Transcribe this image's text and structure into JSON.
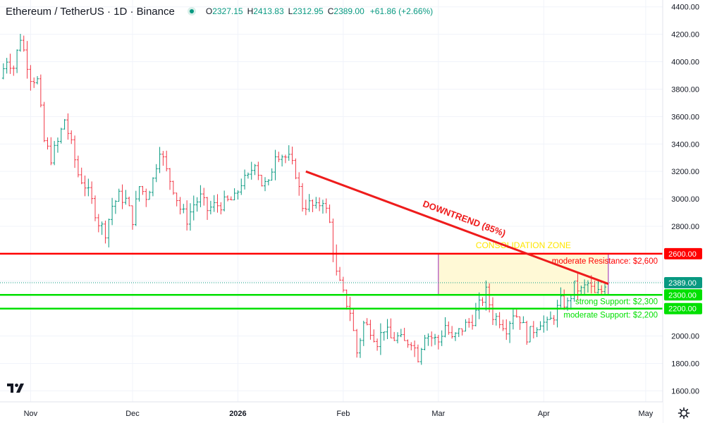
{
  "header": {
    "title": "Ethereum / TetherUS · 1D · Binance",
    "o_label": "O",
    "o_value": "2327.15",
    "h_label": "H",
    "h_value": "2413.83",
    "l_label": "L",
    "l_value": "2312.95",
    "c_label": "C",
    "c_value": "2389.00",
    "change": "+61.86 (+2.66%)"
  },
  "colors": {
    "up": "#089981",
    "down": "#f23645",
    "resistance": "#ff0000",
    "support": "#00e000",
    "trend": "#ee1c1c",
    "zone_fill": "#fff9d6",
    "zone_border": "#9c27b0",
    "zone_label": "#ffe600"
  },
  "chart_data": {
    "type": "candlestick",
    "x_ticks": [
      {
        "date": "2025-11-01",
        "label": "Nov"
      },
      {
        "date": "2025-12-01",
        "label": "Dec"
      },
      {
        "date": "2026-01-01",
        "label": "2026"
      },
      {
        "date": "2026-02-01",
        "label": "Feb"
      },
      {
        "date": "2026-03-01",
        "label": "Mar"
      },
      {
        "date": "2026-04-01",
        "label": "Apr"
      },
      {
        "date": "2026-05-01",
        "label": "May"
      }
    ],
    "y_ticks": [
      1600,
      1800,
      2000,
      2200,
      2400,
      2600,
      2800,
      3000,
      3200,
      3400,
      3600,
      3800,
      4000,
      4200,
      4400
    ],
    "y_range": [
      1520,
      4450
    ],
    "x_range": [
      "2025-10-23",
      "2026-05-06"
    ],
    "closes": [
      {
        "date": "2025-10-24",
        "close": 3880
      },
      {
        "date": "2025-10-26",
        "close": 4020
      },
      {
        "date": "2025-10-28",
        "close": 3960
      },
      {
        "date": "2025-10-30",
        "close": 4180
      },
      {
        "date": "2025-10-31",
        "close": 4080
      },
      {
        "date": "2025-11-02",
        "close": 3890
      },
      {
        "date": "2025-11-04",
        "close": 3860
      },
      {
        "date": "2025-11-06",
        "close": 3420
      },
      {
        "date": "2025-11-08",
        "close": 3300
      },
      {
        "date": "2025-11-10",
        "close": 3410
      },
      {
        "date": "2025-11-12",
        "close": 3580
      },
      {
        "date": "2025-11-14",
        "close": 3390
      },
      {
        "date": "2025-11-16",
        "close": 3180
      },
      {
        "date": "2025-11-18",
        "close": 3100
      },
      {
        "date": "2025-11-20",
        "close": 2980
      },
      {
        "date": "2025-11-22",
        "close": 2830
      },
      {
        "date": "2025-11-24",
        "close": 2760
      },
      {
        "date": "2025-11-26",
        "close": 2950
      },
      {
        "date": "2025-11-28",
        "close": 3020
      },
      {
        "date": "2025-11-30",
        "close": 2990
      },
      {
        "date": "2025-12-02",
        "close": 2850
      },
      {
        "date": "2025-12-04",
        "close": 3090
      },
      {
        "date": "2025-12-06",
        "close": 3020
      },
      {
        "date": "2025-12-08",
        "close": 3140
      },
      {
        "date": "2025-12-10",
        "close": 3370
      },
      {
        "date": "2025-12-12",
        "close": 3200
      },
      {
        "date": "2025-12-14",
        "close": 3080
      },
      {
        "date": "2025-12-16",
        "close": 2930
      },
      {
        "date": "2025-12-18",
        "close": 2850
      },
      {
        "date": "2025-12-20",
        "close": 2960
      },
      {
        "date": "2025-12-22",
        "close": 3010
      },
      {
        "date": "2025-12-24",
        "close": 2920
      },
      {
        "date": "2025-12-26",
        "close": 2950
      },
      {
        "date": "2025-12-28",
        "close": 2960
      },
      {
        "date": "2025-12-30",
        "close": 2980
      },
      {
        "date": "2026-01-01",
        "close": 3000
      },
      {
        "date": "2026-01-03",
        "close": 3120
      },
      {
        "date": "2026-01-05",
        "close": 3150
      },
      {
        "date": "2026-01-07",
        "close": 3280
      },
      {
        "date": "2026-01-09",
        "close": 3110
      },
      {
        "date": "2026-01-11",
        "close": 3100
      },
      {
        "date": "2026-01-13",
        "close": 3340
      },
      {
        "date": "2026-01-15",
        "close": 3320
      },
      {
        "date": "2026-01-17",
        "close": 3290
      },
      {
        "date": "2026-01-19",
        "close": 3190
      },
      {
        "date": "2026-01-21",
        "close": 2950
      },
      {
        "date": "2026-01-23",
        "close": 2960
      },
      {
        "date": "2026-01-25",
        "close": 2930
      },
      {
        "date": "2026-01-27",
        "close": 3000
      },
      {
        "date": "2026-01-29",
        "close": 2820
      },
      {
        "date": "2026-01-31",
        "close": 2450
      },
      {
        "date": "2026-02-02",
        "close": 2300
      },
      {
        "date": "2026-02-04",
        "close": 2180
      },
      {
        "date": "2026-02-06",
        "close": 1880
      },
      {
        "date": "2026-02-08",
        "close": 2090
      },
      {
        "date": "2026-02-10",
        "close": 2050
      },
      {
        "date": "2026-02-12",
        "close": 1960
      },
      {
        "date": "2026-02-14",
        "close": 2060
      },
      {
        "date": "2026-02-16",
        "close": 1980
      },
      {
        "date": "2026-02-18",
        "close": 1990
      },
      {
        "date": "2026-02-20",
        "close": 1950
      },
      {
        "date": "2026-02-22",
        "close": 1970
      },
      {
        "date": "2026-02-24",
        "close": 1850
      },
      {
        "date": "2026-02-26",
        "close": 2020
      },
      {
        "date": "2026-02-28",
        "close": 1990
      },
      {
        "date": "2026-03-02",
        "close": 1960
      },
      {
        "date": "2026-03-04",
        "close": 2080
      },
      {
        "date": "2026-03-06",
        "close": 1970
      },
      {
        "date": "2026-03-08",
        "close": 2030
      },
      {
        "date": "2026-03-10",
        "close": 2080
      },
      {
        "date": "2026-03-12",
        "close": 2120
      },
      {
        "date": "2026-03-14",
        "close": 2220
      },
      {
        "date": "2026-03-16",
        "close": 2320
      },
      {
        "date": "2026-03-18",
        "close": 2150
      },
      {
        "date": "2026-03-20",
        "close": 2120
      },
      {
        "date": "2026-03-22",
        "close": 2060
      },
      {
        "date": "2026-03-24",
        "close": 2170
      },
      {
        "date": "2026-03-26",
        "close": 2130
      },
      {
        "date": "2026-03-28",
        "close": 2000
      },
      {
        "date": "2026-03-30",
        "close": 2050
      },
      {
        "date": "2026-04-01",
        "close": 2110
      },
      {
        "date": "2026-04-03",
        "close": 2080
      },
      {
        "date": "2026-04-05",
        "close": 2150
      },
      {
        "date": "2026-04-07",
        "close": 2250
      },
      {
        "date": "2026-04-09",
        "close": 2230
      },
      {
        "date": "2026-04-11",
        "close": 2360
      },
      {
        "date": "2026-04-13",
        "close": 2330
      },
      {
        "date": "2026-04-15",
        "close": 2380
      },
      {
        "date": "2026-04-17",
        "close": 2300
      },
      {
        "date": "2026-04-19",
        "close": 2327
      },
      {
        "date": "2026-04-20",
        "close": 2389
      }
    ],
    "last_price": 2389.0,
    "levels": [
      {
        "price": 2600,
        "kind": "resistance",
        "tag": "2600.00",
        "text": "moderate Resistance: $2,600"
      },
      {
        "price": 2300,
        "kind": "support",
        "tag": "2300.00",
        "text": "strong Support: $2,300"
      },
      {
        "price": 2200,
        "kind": "support",
        "tag": "2200.00",
        "text": "moderate Support: $2,200"
      }
    ],
    "last_price_tag": "2389.00",
    "trendline": {
      "start": {
        "date": "2026-01-21",
        "price": 3200
      },
      "end": {
        "date": "2026-04-20",
        "price": 2380
      },
      "label": "DOWNTREND (85%)"
    },
    "zone": {
      "start": "2026-03-01",
      "end": "2026-04-20",
      "top": 2600,
      "bottom": 2300,
      "label": "CONSOLIDATION ZONE"
    }
  }
}
